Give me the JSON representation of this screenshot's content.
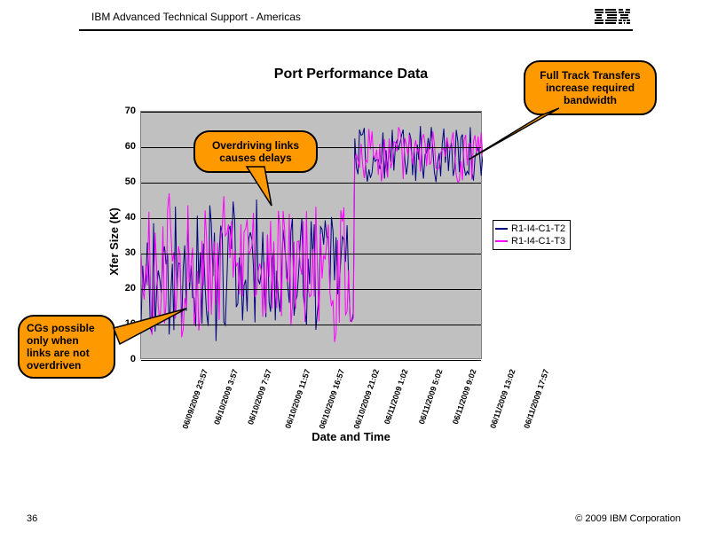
{
  "header": {
    "title": "IBM Advanced Technical Support - Americas"
  },
  "footer": {
    "slide_number": "36",
    "copyright": "© 2009 IBM Corporation"
  },
  "chart": {
    "type": "line",
    "title": "Port Performance Data",
    "ylabel": "Xfer Size (K)",
    "xlabel": "Date and Time",
    "plot_bg": "#c0c0c0",
    "grid_color": "#000000",
    "ylim_min": 0,
    "ylim_max": 70,
    "ytick_step": 10,
    "yticks": [
      0,
      10,
      20,
      30,
      40,
      50,
      60,
      70
    ],
    "xticks": [
      "06/09/2009 23:57",
      "06/10/2009 3:57",
      "06/10/2009 7:57",
      "06/10/2009 11:57",
      "06/10/2009 16:57",
      "06/10/2009 21:02",
      "06/11/2009 1:02",
      "06/11/2009 5:02",
      "06/11/2009 9:02",
      "06/11/2009 13:02",
      "06/11/2009 17:57"
    ],
    "series": [
      {
        "name": "R1-I4-C1-T2",
        "color": "#000080",
        "phase1_center": 25,
        "phase1_spread": 18,
        "phase2_center": 58,
        "phase2_spread": 8
      },
      {
        "name": "R1-I4-C1-T3",
        "color": "#ff00ff",
        "phase1_center": 25,
        "phase1_spread": 20,
        "phase2_center": 58,
        "phase2_spread": 8
      }
    ],
    "n_points": 220,
    "phase_break": 0.61
  },
  "callouts": {
    "top_right": {
      "text_line1": "Full Track Transfers",
      "text_line2": "increase required",
      "text_line3": "bandwidth"
    },
    "mid": {
      "text_line1": "Overdriving links",
      "text_line2": "causes delays"
    },
    "left": {
      "text_line1": "CGs possible",
      "text_line2": "only when",
      "text_line3": "links are not",
      "text_line4": "overdriven"
    }
  }
}
